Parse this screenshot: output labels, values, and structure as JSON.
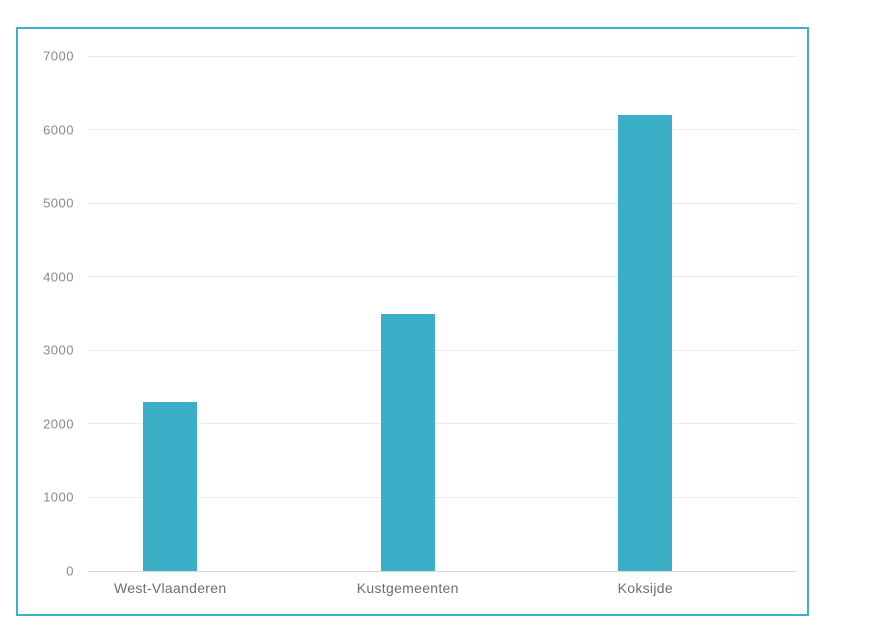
{
  "chart_data": {
    "type": "bar",
    "title": "",
    "xlabel": "",
    "ylabel": "",
    "categories": [
      "West-Vlaanderen",
      "Kustgemeenten",
      "Koksijde"
    ],
    "values": [
      2300,
      3500,
      6200
    ],
    "ylim": [
      0,
      7000
    ],
    "yticks": [
      0,
      1000,
      2000,
      3000,
      4000,
      5000,
      6000,
      7000
    ],
    "ytick_labels": [
      "0",
      "1000",
      "2000",
      "3000",
      "4000",
      "5000",
      "6000",
      "7000"
    ],
    "grid": true,
    "legend": false,
    "colors": {
      "bar": "#3baec8",
      "frame_border": "#3fb0cb",
      "gridline": "#ececec",
      "zero_line": "#d7d7d7",
      "y_tick_text": "#8a8a8a",
      "x_tick_text": "#6e6e6e",
      "background": "#ffffff"
    }
  }
}
